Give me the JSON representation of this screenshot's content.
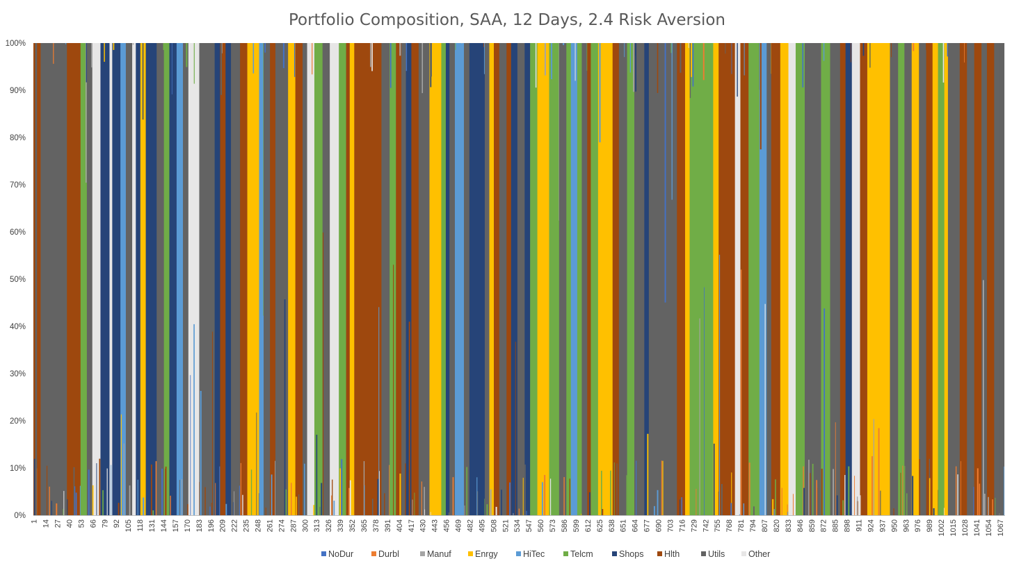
{
  "chart_data": {
    "type": "bar",
    "stacked": true,
    "percent_stacked": true,
    "title": "Portfolio Composition, SAA, 12 Days, 2.4 Risk Aversion",
    "xlabel": "",
    "ylabel": "",
    "ylim": [
      0,
      1
    ],
    "y_ticks": [
      "0%",
      "10%",
      "20%",
      "30%",
      "40%",
      "50%",
      "60%",
      "70%",
      "80%",
      "90%",
      "100%"
    ],
    "x_range": [
      1,
      1072
    ],
    "x_tick_labels": [
      "1",
      "14",
      "27",
      "40",
      "53",
      "66",
      "79",
      "92",
      "105",
      "118",
      "131",
      "144",
      "157",
      "170",
      "183",
      "196",
      "209",
      "222",
      "235",
      "248",
      "261",
      "274",
      "287",
      "300",
      "313",
      "326",
      "339",
      "352",
      "365",
      "378",
      "391",
      "404",
      "417",
      "430",
      "443",
      "456",
      "469",
      "482",
      "495",
      "508",
      "521",
      "534",
      "547",
      "560",
      "573",
      "586",
      "599",
      "612",
      "625",
      "638",
      "651",
      "664",
      "677",
      "690",
      "703",
      "716",
      "729",
      "742",
      "755",
      "768",
      "781",
      "794",
      "807",
      "820",
      "833",
      "846",
      "859",
      "872",
      "885",
      "898",
      "911",
      "924",
      "937",
      "950",
      "963",
      "976",
      "989",
      "1002",
      "1015",
      "1028",
      "1041",
      "1054",
      "1067"
    ],
    "gridlines": false,
    "legend_position": "bottom",
    "series_names": [
      "NoDur",
      "Durbl",
      "Manuf",
      "Enrgy",
      "HiTec",
      "Telcm",
      "Shops",
      "Hlth",
      "Utils",
      "Other"
    ],
    "colors": {
      "NoDur": "#4472C4",
      "Durbl": "#ED7D31",
      "Manuf": "#A5A5A5",
      "Enrgy": "#FFC000",
      "HiTec": "#5B9BD5",
      "Telcm": "#70AD47",
      "Shops": "#264478",
      "Hlth": "#9E480E",
      "Utils": "#636363",
      "Other": "#E7E6E6"
    },
    "approximate_dominant_segments": [
      {
        "from": 1,
        "to": 3,
        "dominant": "Hlth"
      },
      {
        "from": 3,
        "to": 5,
        "dominant": "Utils"
      },
      {
        "from": 5,
        "to": 9,
        "dominant": "Hlth"
      },
      {
        "from": 9,
        "to": 38,
        "dominant": "Utils"
      },
      {
        "from": 38,
        "to": 53,
        "dominant": "Hlth"
      },
      {
        "from": 53,
        "to": 60,
        "dominant": "Telcm"
      },
      {
        "from": 60,
        "to": 66,
        "dominant": "Utils"
      },
      {
        "from": 66,
        "to": 75,
        "dominant": "Other"
      },
      {
        "from": 75,
        "to": 85,
        "dominant": "Shops"
      },
      {
        "from": 85,
        "to": 88,
        "dominant": "Other"
      },
      {
        "from": 88,
        "to": 97,
        "dominant": "Shops"
      },
      {
        "from": 97,
        "to": 103,
        "dominant": "HiTec"
      },
      {
        "from": 103,
        "to": 110,
        "dominant": "Utils"
      },
      {
        "from": 110,
        "to": 114,
        "dominant": "Other"
      },
      {
        "from": 114,
        "to": 119,
        "dominant": "Shops"
      },
      {
        "from": 119,
        "to": 125,
        "dominant": "Enrgy"
      },
      {
        "from": 125,
        "to": 137,
        "dominant": "Shops"
      },
      {
        "from": 137,
        "to": 145,
        "dominant": "Utils"
      },
      {
        "from": 145,
        "to": 151,
        "dominant": "Telcm"
      },
      {
        "from": 151,
        "to": 159,
        "dominant": "Shops"
      },
      {
        "from": 159,
        "to": 166,
        "dominant": "HiTec"
      },
      {
        "from": 166,
        "to": 172,
        "dominant": "Utils"
      },
      {
        "from": 172,
        "to": 184,
        "dominant": "Other"
      },
      {
        "from": 184,
        "to": 201,
        "dominant": "Utils"
      },
      {
        "from": 201,
        "to": 207,
        "dominant": "Shops"
      },
      {
        "from": 207,
        "to": 213,
        "dominant": "Hlth"
      },
      {
        "from": 213,
        "to": 219,
        "dominant": "Shops"
      },
      {
        "from": 219,
        "to": 229,
        "dominant": "Utils"
      },
      {
        "from": 229,
        "to": 237,
        "dominant": "Hlth"
      },
      {
        "from": 237,
        "to": 250,
        "dominant": "Enrgy"
      },
      {
        "from": 250,
        "to": 255,
        "dominant": "HiTec"
      },
      {
        "from": 255,
        "to": 262,
        "dominant": "Utils"
      },
      {
        "from": 262,
        "to": 268,
        "dominant": "Hlth"
      },
      {
        "from": 268,
        "to": 282,
        "dominant": "Utils"
      },
      {
        "from": 282,
        "to": 290,
        "dominant": "Enrgy"
      },
      {
        "from": 290,
        "to": 298,
        "dominant": "Hlth"
      },
      {
        "from": 298,
        "to": 303,
        "dominant": "Utils"
      },
      {
        "from": 303,
        "to": 311,
        "dominant": "Other"
      },
      {
        "from": 311,
        "to": 320,
        "dominant": "Telcm"
      },
      {
        "from": 320,
        "to": 328,
        "dominant": "Utils"
      },
      {
        "from": 328,
        "to": 338,
        "dominant": "Other"
      },
      {
        "from": 338,
        "to": 346,
        "dominant": "Telcm"
      },
      {
        "from": 346,
        "to": 350,
        "dominant": "Hlth"
      },
      {
        "from": 350,
        "to": 355,
        "dominant": "Enrgy"
      },
      {
        "from": 355,
        "to": 385,
        "dominant": "Hlth"
      },
      {
        "from": 385,
        "to": 394,
        "dominant": "Utils"
      },
      {
        "from": 394,
        "to": 401,
        "dominant": "Telcm"
      },
      {
        "from": 401,
        "to": 407,
        "dominant": "Hlth"
      },
      {
        "from": 407,
        "to": 412,
        "dominant": "Utils"
      },
      {
        "from": 412,
        "to": 418,
        "dominant": "Shops"
      },
      {
        "from": 418,
        "to": 426,
        "dominant": "Hlth"
      },
      {
        "from": 426,
        "to": 438,
        "dominant": "Utils"
      },
      {
        "from": 438,
        "to": 451,
        "dominant": "Enrgy"
      },
      {
        "from": 451,
        "to": 456,
        "dominant": "Telcm"
      },
      {
        "from": 456,
        "to": 460,
        "dominant": "Shops"
      },
      {
        "from": 460,
        "to": 466,
        "dominant": "Utils"
      },
      {
        "from": 466,
        "to": 476,
        "dominant": "HiTec"
      },
      {
        "from": 476,
        "to": 482,
        "dominant": "Utils"
      },
      {
        "from": 482,
        "to": 499,
        "dominant": "Shops"
      },
      {
        "from": 499,
        "to": 504,
        "dominant": "Utils"
      },
      {
        "from": 504,
        "to": 509,
        "dominant": "Enrgy"
      },
      {
        "from": 509,
        "to": 515,
        "dominant": "Hlth"
      },
      {
        "from": 515,
        "to": 523,
        "dominant": "Utils"
      },
      {
        "from": 523,
        "to": 528,
        "dominant": "Hlth"
      },
      {
        "from": 528,
        "to": 535,
        "dominant": "Shops"
      },
      {
        "from": 535,
        "to": 543,
        "dominant": "Utils"
      },
      {
        "from": 543,
        "to": 549,
        "dominant": "Shops"
      },
      {
        "from": 549,
        "to": 557,
        "dominant": "Telcm"
      },
      {
        "from": 557,
        "to": 570,
        "dominant": "Enrgy"
      },
      {
        "from": 570,
        "to": 581,
        "dominant": "Telcm"
      },
      {
        "from": 581,
        "to": 589,
        "dominant": "Utils"
      },
      {
        "from": 589,
        "to": 594,
        "dominant": "Telcm"
      },
      {
        "from": 594,
        "to": 601,
        "dominant": "HiTec"
      },
      {
        "from": 601,
        "to": 606,
        "dominant": "Telcm"
      },
      {
        "from": 606,
        "to": 612,
        "dominant": "Utils"
      },
      {
        "from": 612,
        "to": 616,
        "dominant": "Hlth"
      },
      {
        "from": 616,
        "to": 624,
        "dominant": "Telcm"
      },
      {
        "from": 624,
        "to": 640,
        "dominant": "Enrgy"
      },
      {
        "from": 640,
        "to": 647,
        "dominant": "Hlth"
      },
      {
        "from": 647,
        "to": 656,
        "dominant": "Utils"
      },
      {
        "from": 656,
        "to": 664,
        "dominant": "Telcm"
      },
      {
        "from": 664,
        "to": 675,
        "dominant": "Utils"
      },
      {
        "from": 675,
        "to": 680,
        "dominant": "Shops"
      },
      {
        "from": 680,
        "to": 711,
        "dominant": "Utils"
      },
      {
        "from": 711,
        "to": 720,
        "dominant": "Hlth"
      },
      {
        "from": 720,
        "to": 725,
        "dominant": "Enrgy"
      },
      {
        "from": 725,
        "to": 751,
        "dominant": "Telcm"
      },
      {
        "from": 751,
        "to": 757,
        "dominant": "Enrgy"
      },
      {
        "from": 757,
        "to": 775,
        "dominant": "Hlth"
      },
      {
        "from": 775,
        "to": 781,
        "dominant": "Other"
      },
      {
        "from": 781,
        "to": 790,
        "dominant": "Hlth"
      },
      {
        "from": 790,
        "to": 802,
        "dominant": "Telcm"
      },
      {
        "from": 802,
        "to": 810,
        "dominant": "HiTec"
      },
      {
        "from": 810,
        "to": 815,
        "dominant": "Utils"
      },
      {
        "from": 815,
        "to": 825,
        "dominant": "Hlth"
      },
      {
        "from": 825,
        "to": 834,
        "dominant": "Enrgy"
      },
      {
        "from": 834,
        "to": 842,
        "dominant": "Other"
      },
      {
        "from": 842,
        "to": 852,
        "dominant": "Telcm"
      },
      {
        "from": 852,
        "to": 870,
        "dominant": "Utils"
      },
      {
        "from": 870,
        "to": 880,
        "dominant": "Telcm"
      },
      {
        "from": 880,
        "to": 891,
        "dominant": "Utils"
      },
      {
        "from": 891,
        "to": 897,
        "dominant": "Hlth"
      },
      {
        "from": 897,
        "to": 904,
        "dominant": "Shops"
      },
      {
        "from": 904,
        "to": 913,
        "dominant": "Other"
      },
      {
        "from": 913,
        "to": 921,
        "dominant": "Hlth"
      },
      {
        "from": 921,
        "to": 933,
        "dominant": "Enrgy"
      },
      {
        "from": 933,
        "to": 946,
        "dominant": "Enrgy"
      },
      {
        "from": 946,
        "to": 955,
        "dominant": "Utils"
      },
      {
        "from": 955,
        "to": 962,
        "dominant": "Telcm"
      },
      {
        "from": 962,
        "to": 970,
        "dominant": "Utils"
      },
      {
        "from": 970,
        "to": 978,
        "dominant": "Enrgy"
      },
      {
        "from": 978,
        "to": 986,
        "dominant": "Utils"
      },
      {
        "from": 986,
        "to": 993,
        "dominant": "Hlth"
      },
      {
        "from": 993,
        "to": 999,
        "dominant": "Enrgy"
      },
      {
        "from": 999,
        "to": 1006,
        "dominant": "Telcm"
      },
      {
        "from": 1006,
        "to": 1010,
        "dominant": "Enrgy"
      },
      {
        "from": 1010,
        "to": 1023,
        "dominant": "Utils"
      },
      {
        "from": 1023,
        "to": 1031,
        "dominant": "Hlth"
      },
      {
        "from": 1031,
        "to": 1039,
        "dominant": "Utils"
      },
      {
        "from": 1039,
        "to": 1047,
        "dominant": "Hlth"
      },
      {
        "from": 1047,
        "to": 1053,
        "dominant": "Utils"
      },
      {
        "from": 1053,
        "to": 1061,
        "dominant": "Hlth"
      },
      {
        "from": 1061,
        "to": 1067,
        "dominant": "Utils"
      },
      {
        "from": 1067,
        "to": 1072,
        "dominant": "Utils"
      }
    ]
  }
}
